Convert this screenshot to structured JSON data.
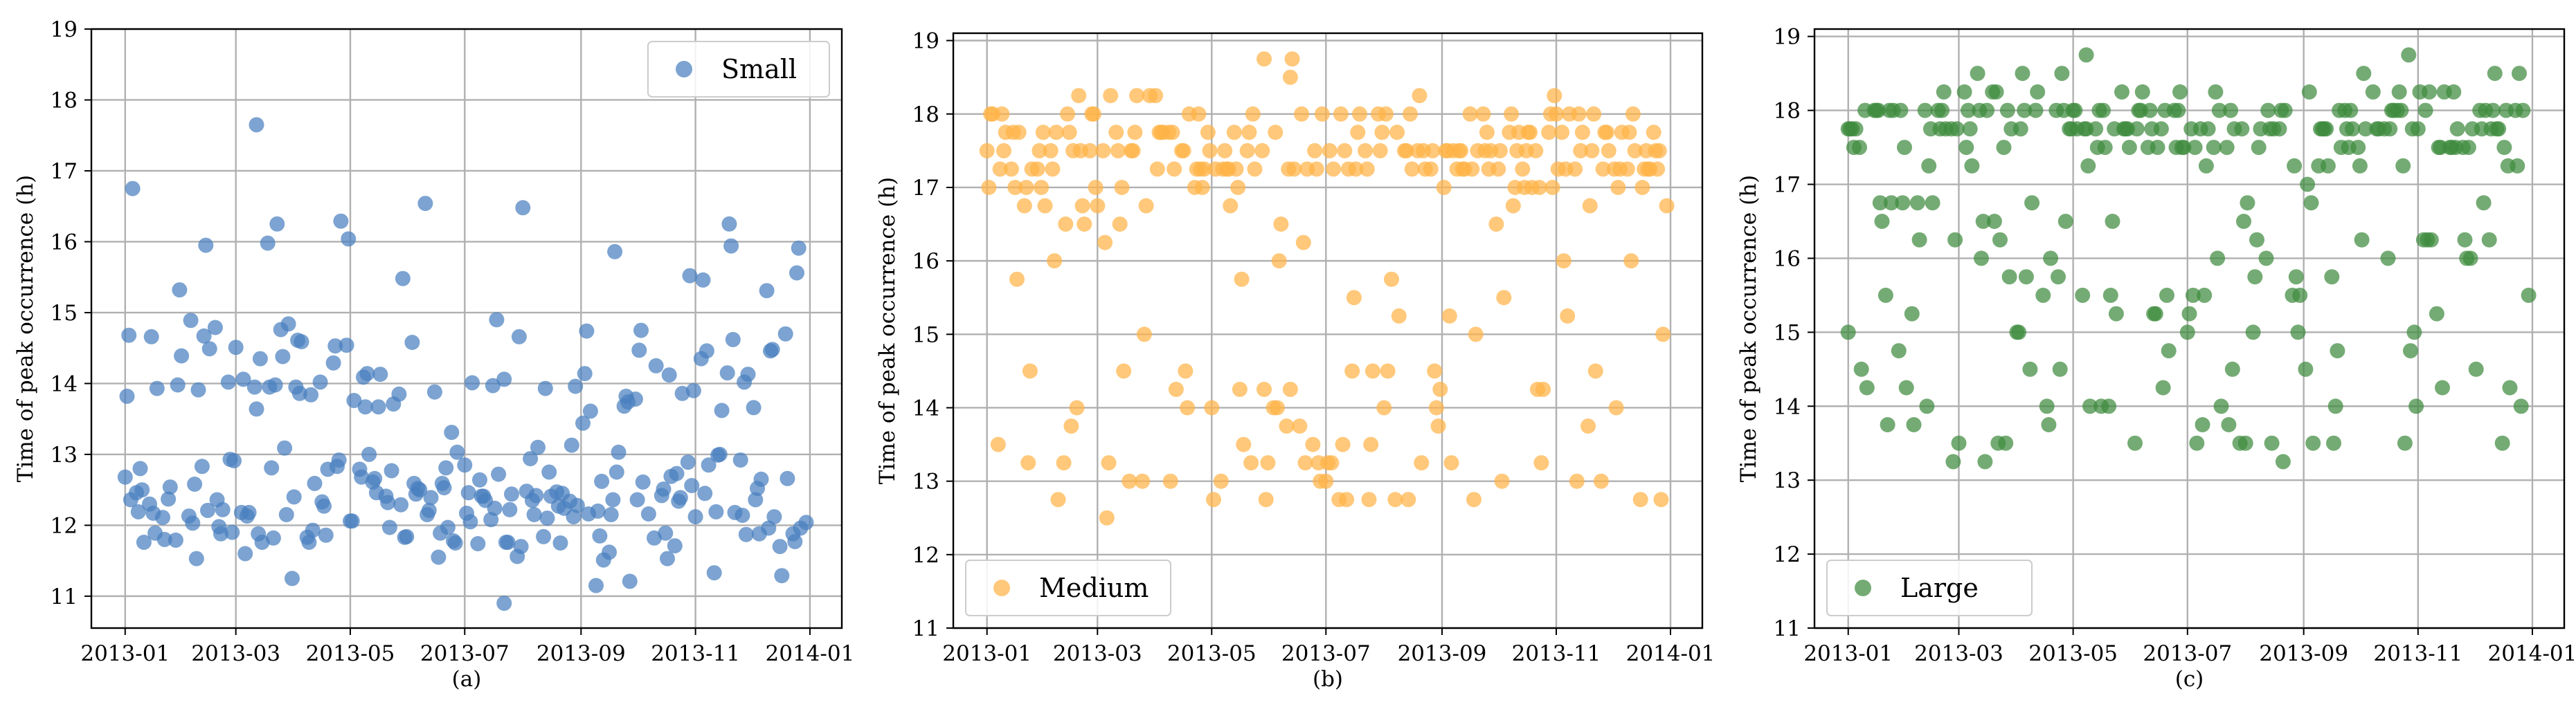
{
  "chart_data": [
    {
      "type": "scatter",
      "panel_label": "(a)",
      "ylabel": "Time of peak occurrence (h)",
      "ylim": [
        10.55,
        19.0
      ],
      "yticks": [
        11,
        12,
        13,
        14,
        15,
        16,
        17,
        18,
        19
      ],
      "xlim": [
        "2012-12-14",
        "2014-01-18"
      ],
      "xticks": [
        "2013-01",
        "2013-03",
        "2013-05",
        "2013-07",
        "2013-09",
        "2013-11",
        "2014-01"
      ],
      "legend": {
        "label": "Small",
        "position": "upper right"
      },
      "color": "#4a7fbf",
      "grid": true,
      "series": [
        {
          "name": "Small",
          "points": []
        }
      ]
    },
    {
      "type": "scatter",
      "panel_label": "(b)",
      "ylabel": "Time of peak occurrence (h)",
      "ylim": [
        11.0,
        19.1
      ],
      "yticks": [
        11,
        12,
        13,
        14,
        15,
        16,
        17,
        18,
        19
      ],
      "xlim": [
        "2012-12-14",
        "2014-01-18"
      ],
      "xticks": [
        "2013-01",
        "2013-03",
        "2013-05",
        "2013-07",
        "2013-09",
        "2013-11",
        "2014-01"
      ],
      "legend": {
        "label": "Medium",
        "position": "lower left"
      },
      "color": "#ffb347",
      "grid": true,
      "series": [
        {
          "name": "Medium",
          "points": []
        }
      ]
    },
    {
      "type": "scatter",
      "panel_label": "(c)",
      "ylabel": "Time of peak occurrence (h)",
      "ylim": [
        11.0,
        19.1
      ],
      "yticks": [
        11,
        12,
        13,
        14,
        15,
        16,
        17,
        18,
        19
      ],
      "xlim": [
        "2012-12-14",
        "2014-01-18"
      ],
      "xticks": [
        "2013-01",
        "2013-03",
        "2013-05",
        "2013-07",
        "2013-09",
        "2013-11",
        "2014-01"
      ],
      "legend": {
        "label": "Large",
        "position": "lower left"
      },
      "color": "#3f8a3f",
      "grid": true,
      "series": [
        {
          "name": "Large",
          "points": []
        }
      ]
    }
  ]
}
